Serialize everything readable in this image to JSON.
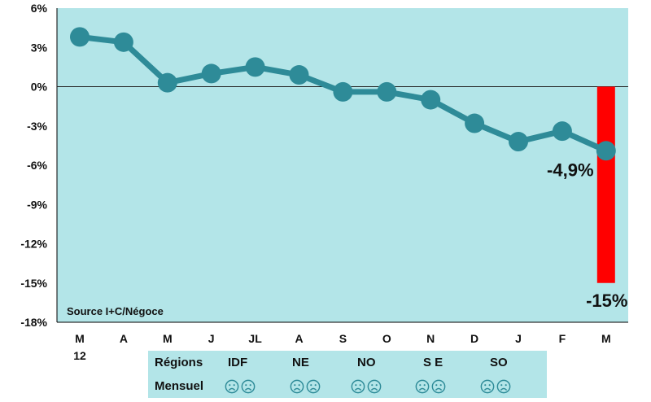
{
  "chart_data": {
    "type": "line",
    "categories": [
      "M",
      "A",
      "M",
      "J",
      "JL",
      "A",
      "S",
      "O",
      "N",
      "D",
      "J",
      "F",
      "M"
    ],
    "category_sublabels": [
      "12",
      "",
      "",
      "",
      "",
      "",
      "",
      "",
      "",
      "",
      "",
      "",
      ""
    ],
    "series": [
      {
        "values": [
          3.8,
          3.4,
          0.3,
          1.0,
          1.5,
          0.9,
          -0.4,
          -0.4,
          -1.0,
          -2.8,
          -4.2,
          -3.4,
          -4.9
        ]
      }
    ],
    "bar": {
      "category_index": 12,
      "value": -15
    },
    "data_labels": [
      {
        "category_index": 12,
        "text": "-4,9%"
      },
      {
        "category_index": 12,
        "text": "-15%"
      }
    ],
    "yticks": [
      "6%",
      "3%",
      "0%",
      "-3%",
      "-6%",
      "-9%",
      "-12%",
      "-15%",
      "-18%"
    ],
    "ylim": [
      -18,
      6
    ],
    "ytick_step": 3,
    "annotation": "Source I+C/Négoce",
    "colors": {
      "plot_bg": "#b3e5e8",
      "line": "#2e8b98",
      "bar": "#ff0000"
    }
  },
  "regions_table": {
    "row_labels": [
      "Régions",
      "Mensuel"
    ],
    "regions": [
      "IDF",
      "NE",
      "NO",
      "S E",
      "SO"
    ],
    "monthly_icon": "sad-face-icon",
    "icons_per_region": 2
  }
}
